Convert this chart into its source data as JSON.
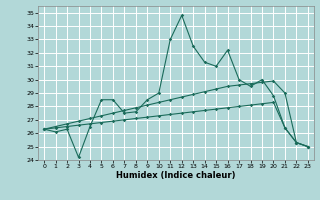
{
  "xlabel": "Humidex (Indice chaleur)",
  "background_color": "#b2d8d8",
  "grid_color": "#ffffff",
  "line_color": "#1a6b5a",
  "xlim": [
    -0.5,
    23.5
  ],
  "ylim": [
    24,
    35.5
  ],
  "yticks": [
    24,
    25,
    26,
    27,
    28,
    29,
    30,
    31,
    32,
    33,
    34,
    35
  ],
  "xticks": [
    0,
    1,
    2,
    3,
    4,
    5,
    6,
    7,
    8,
    9,
    10,
    11,
    12,
    13,
    14,
    15,
    16,
    17,
    18,
    19,
    20,
    21,
    22,
    23
  ],
  "series1_x": [
    0,
    1,
    2,
    3,
    4,
    5,
    6,
    7,
    8,
    9,
    10,
    11,
    12,
    13,
    14,
    15,
    16,
    17,
    18,
    19,
    20,
    21,
    22,
    23
  ],
  "series1_y": [
    26.3,
    26.1,
    26.3,
    24.2,
    26.5,
    28.5,
    28.5,
    27.5,
    27.6,
    28.5,
    29.0,
    33.0,
    34.8,
    32.5,
    31.3,
    31.0,
    32.2,
    30.0,
    29.5,
    30.0,
    28.8,
    26.4,
    25.3,
    25.0
  ],
  "series2_x": [
    0,
    1,
    2,
    3,
    4,
    5,
    6,
    7,
    8,
    9,
    10,
    11,
    12,
    13,
    14,
    15,
    16,
    17,
    18,
    19,
    20,
    21,
    22,
    23
  ],
  "series2_y": [
    26.3,
    26.5,
    26.7,
    26.9,
    27.1,
    27.3,
    27.5,
    27.7,
    27.9,
    28.1,
    28.3,
    28.5,
    28.7,
    28.9,
    29.1,
    29.3,
    29.5,
    29.6,
    29.7,
    29.8,
    29.9,
    29.0,
    25.3,
    25.0
  ],
  "series3_x": [
    0,
    1,
    2,
    3,
    4,
    5,
    6,
    7,
    8,
    9,
    10,
    11,
    12,
    13,
    14,
    15,
    16,
    17,
    18,
    19,
    20,
    21,
    22,
    23
  ],
  "series3_y": [
    26.3,
    26.4,
    26.5,
    26.6,
    26.7,
    26.8,
    26.9,
    27.0,
    27.1,
    27.2,
    27.3,
    27.4,
    27.5,
    27.6,
    27.7,
    27.8,
    27.9,
    28.0,
    28.1,
    28.2,
    28.3,
    26.4,
    25.3,
    25.0
  ]
}
